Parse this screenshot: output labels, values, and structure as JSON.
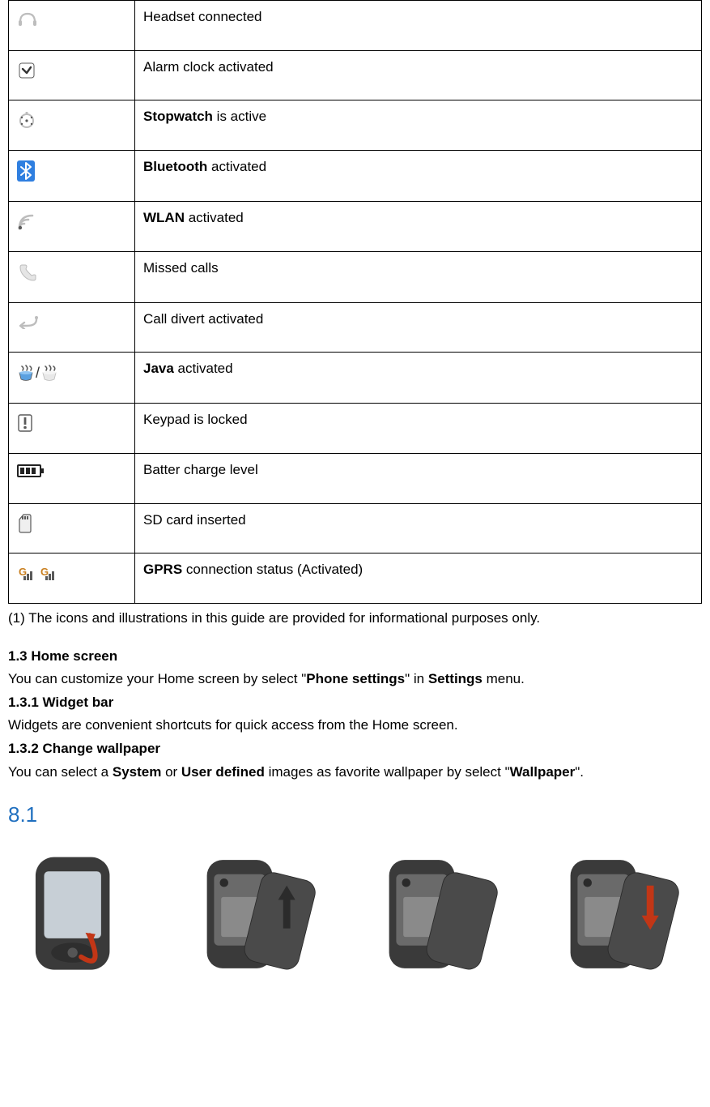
{
  "table_rows": [
    {
      "icon": "headset",
      "desc_html": "Headset connected"
    },
    {
      "icon": "alarm",
      "desc_html": "Alarm clock activated"
    },
    {
      "icon": "stopwatch",
      "desc_html": "<b>Stopwatch</b> is active"
    },
    {
      "icon": "bluetooth",
      "desc_html": "<b>Bluetooth</b> activated"
    },
    {
      "icon": "wlan",
      "desc_html": "<b>WLAN</b> activated"
    },
    {
      "icon": "missed",
      "desc_html": "Missed calls"
    },
    {
      "icon": "divert",
      "desc_html": "Call divert activated"
    },
    {
      "icon": "java",
      "desc_html": "<b>Java</b> activated"
    },
    {
      "icon": "keypad",
      "desc_html": "Keypad is locked"
    },
    {
      "icon": "battery",
      "desc_html": "Batter charge level"
    },
    {
      "icon": "sdcard",
      "desc_html": "SD card inserted"
    },
    {
      "icon": "gprs",
      "desc_html": "<b>GPRS</b> connection status (Activated)"
    }
  ],
  "footnote": "(1) The icons and illustrations in this guide are provided for informational purposes only.",
  "sec_1_3_title": "1.3 Home screen",
  "sec_1_3_body_html": "You can customize your Home screen by select \"<b>Phone settings</b>\" in <b>Settings</b> menu.",
  "sec_1_3_1_title": "1.3.1 Widget bar",
  "sec_1_3_1_body": "Widgets are convenient shortcuts for quick access from the Home screen.",
  "sec_1_3_2_title": "1.3.2 Change wallpaper",
  "sec_1_3_2_body_html": "You can select a <b>System</b> or <b>User defined</b> images as favorite wallpaper by select \"<b>Wallpaper</b>\".",
  "blue_heading": "8.1",
  "colors": {
    "text": "#000000",
    "border": "#000000",
    "blue_heading": "#1f6fbf",
    "bluetooth_bg": "#2f7fe0",
    "gprs_g": "#c97f1f",
    "arrow_red": "#c23616",
    "arrow_black": "#2b2b2b",
    "phone_body": "#3a3a3a",
    "phone_screen": "#c7cfd6",
    "icon_gray": "#bdbdbd",
    "icon_dark": "#5a5a5a"
  }
}
